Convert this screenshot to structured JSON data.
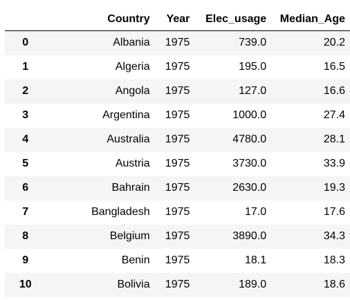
{
  "table": {
    "columns": [
      "",
      "Country",
      "Year",
      "Elec_usage",
      "Median_Age"
    ],
    "rows": [
      {
        "index": "0",
        "country": "Albania",
        "year": "1975",
        "elec_usage": "739.0",
        "median_age": "20.2"
      },
      {
        "index": "1",
        "country": "Algeria",
        "year": "1975",
        "elec_usage": "195.0",
        "median_age": "16.5"
      },
      {
        "index": "2",
        "country": "Angola",
        "year": "1975",
        "elec_usage": "127.0",
        "median_age": "16.6"
      },
      {
        "index": "3",
        "country": "Argentina",
        "year": "1975",
        "elec_usage": "1000.0",
        "median_age": "27.4"
      },
      {
        "index": "4",
        "country": "Australia",
        "year": "1975",
        "elec_usage": "4780.0",
        "median_age": "28.1"
      },
      {
        "index": "5",
        "country": "Austria",
        "year": "1975",
        "elec_usage": "3730.0",
        "median_age": "33.9"
      },
      {
        "index": "6",
        "country": "Bahrain",
        "year": "1975",
        "elec_usage": "2630.0",
        "median_age": "19.3"
      },
      {
        "index": "7",
        "country": "Bangladesh",
        "year": "1975",
        "elec_usage": "17.0",
        "median_age": "17.6"
      },
      {
        "index": "8",
        "country": "Belgium",
        "year": "1975",
        "elec_usage": "3890.0",
        "median_age": "34.3"
      },
      {
        "index": "9",
        "country": "Benin",
        "year": "1975",
        "elec_usage": "18.1",
        "median_age": "18.3"
      },
      {
        "index": "10",
        "country": "Bolivia",
        "year": "1975",
        "elec_usage": "189.0",
        "median_age": "18.6"
      }
    ]
  },
  "colors": {
    "stripe": "#f5f5f5",
    "background": "#ffffff",
    "text": "#000000"
  }
}
